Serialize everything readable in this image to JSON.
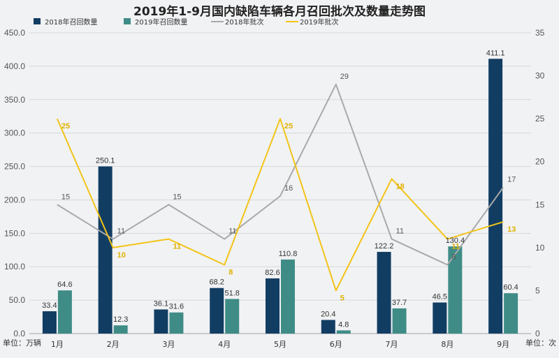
{
  "title": "2019年1-9月国内缺陷车辆各月召回批次及数量走势图",
  "left_unit": "单位：万辆",
  "right_unit": "单位：次",
  "chart_data": {
    "type": "bar",
    "categories": [
      "1月",
      "2月",
      "3月",
      "4月",
      "5月",
      "6月",
      "7月",
      "8月",
      "9月"
    ],
    "y_left_lim": [
      0,
      450
    ],
    "y_left_ticks": [
      "0.0",
      "50.0",
      "100.0",
      "150.0",
      "200.0",
      "250.0",
      "300.0",
      "350.0",
      "400.0",
      "450.0"
    ],
    "y_right_lim": [
      0,
      35
    ],
    "y_right_ticks": [
      "0",
      "5",
      "10",
      "15",
      "20",
      "25",
      "30",
      "35"
    ],
    "legend_position": "top-left",
    "series": [
      {
        "name": "2018年召回数量",
        "type": "bar",
        "axis": "left",
        "color": "#123d63",
        "values": [
          33.4,
          250.1,
          36.1,
          68.2,
          82.6,
          20.4,
          122.2,
          46.5,
          411.1
        ],
        "labels": [
          "33.4",
          "250.1",
          "36.1",
          "68.2",
          "82.6",
          "20.4",
          "122.2",
          "46.5",
          "411.1"
        ]
      },
      {
        "name": "2019年召回数量",
        "type": "bar",
        "axis": "left",
        "color": "#3f8c87",
        "values": [
          64.6,
          12.3,
          31.6,
          51.8,
          110.8,
          4.8,
          37.7,
          130.4,
          60.4
        ],
        "labels": [
          "64.6",
          "12.3",
          "31.6",
          "51.8",
          "110.8",
          "4.8",
          "37.7",
          "130.4",
          "60.4"
        ]
      },
      {
        "name": "2018年批次",
        "type": "line",
        "axis": "right",
        "color": "#a9a9a9",
        "values": [
          15,
          11,
          15,
          11,
          16,
          29,
          11,
          8,
          17
        ],
        "labels": [
          "15",
          "11",
          "15",
          "11",
          "16",
          "29",
          "11",
          "8",
          "17"
        ]
      },
      {
        "name": "2019年批次",
        "type": "line",
        "axis": "right",
        "color": "#f2c418",
        "values": [
          25,
          10,
          11,
          8,
          25,
          5,
          18,
          11,
          13
        ],
        "labels": [
          "25",
          "10",
          "11",
          "8",
          "25",
          "5",
          "18",
          "11",
          "13"
        ]
      }
    ]
  }
}
